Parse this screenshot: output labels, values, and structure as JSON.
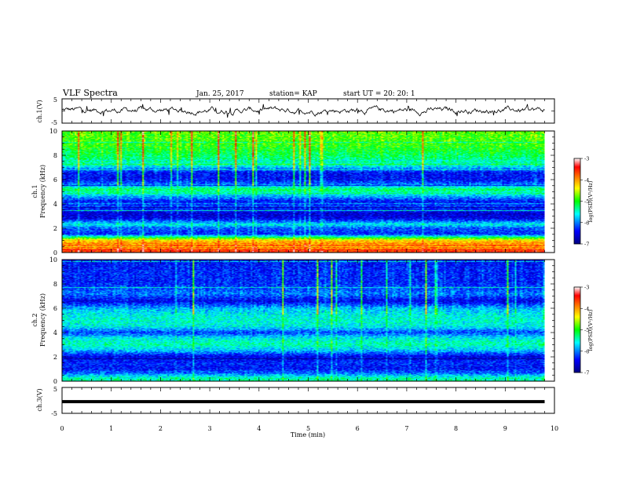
{
  "header": {
    "title": "VLF Spectra",
    "date": "Jan. 25, 2017",
    "station": "station= KAP",
    "start": "start  UT =   20: 20: 1"
  },
  "panels": {
    "ch1_wave": {
      "ylabel": "ch.1(V)",
      "ymin_label": "-5",
      "ymax_label": "5"
    },
    "spec1": {
      "ylabel_line1": "ch.1",
      "ylabel_line2": "Frequency (kHz)"
    },
    "spec2": {
      "ylabel_line1": "ch.2",
      "ylabel_line2": "Frequency (kHz)"
    },
    "ch3_wave": {
      "ylabel": "ch.3(V)",
      "ymin_label": "-5",
      "ymax_label": "5"
    },
    "xlabel": "Time  (min)"
  },
  "colorbar": {
    "label": "log(PSD)(V²/Hz)",
    "ticks": [
      "-3",
      "-4",
      "-5",
      "-6",
      "-7"
    ],
    "colors": [
      "#ffffff",
      "#ff0000",
      "#ffff00",
      "#00ff00",
      "#00ffff",
      "#0000ff",
      "#000080"
    ]
  },
  "chart_data": [
    {
      "type": "line",
      "name": "ch1-waveform",
      "ylabel": "ch.1(V)",
      "xlim": [
        0,
        9.8
      ],
      "ylim": [
        -5,
        5
      ],
      "yticks": [
        -5,
        5
      ],
      "description_values": {
        "mean_v": 0.3,
        "noise_amplitude_v": 1.8
      }
    },
    {
      "type": "heatmap",
      "name": "ch1-spectrogram",
      "ylabel": "Frequency (kHz)",
      "xlim": [
        0,
        9.8
      ],
      "ylim": [
        0,
        10
      ],
      "yticks": [
        0,
        2,
        4,
        6,
        8,
        10
      ],
      "zlim": [
        -7,
        -3
      ],
      "freq_profile_khz_logpsd": [
        [
          0.2,
          -3.6
        ],
        [
          0.6,
          -3.8
        ],
        [
          1.0,
          -4.3
        ],
        [
          1.5,
          -6.3
        ],
        [
          2.0,
          -6.1
        ],
        [
          2.3,
          -5.6
        ],
        [
          2.8,
          -6.5
        ],
        [
          3.2,
          -6.6
        ],
        [
          3.8,
          -6.2
        ],
        [
          4.2,
          -6.4
        ],
        [
          4.8,
          -5.6
        ],
        [
          5.2,
          -5.2
        ],
        [
          5.6,
          -6.0
        ],
        [
          6.0,
          -6.4
        ],
        [
          6.6,
          -6.4
        ],
        [
          7.2,
          -5.5
        ],
        [
          8.0,
          -5.2
        ],
        [
          9.0,
          -4.9
        ],
        [
          10.0,
          -4.8
        ]
      ]
    },
    {
      "type": "heatmap",
      "name": "ch2-spectrogram",
      "ylabel": "Frequency (kHz)",
      "xlim": [
        0,
        9.8
      ],
      "ylim": [
        0,
        10
      ],
      "yticks": [
        0,
        2,
        4,
        6,
        8,
        10
      ],
      "zlim": [
        -7,
        -3
      ],
      "freq_profile_khz_logpsd": [
        [
          0.2,
          -5.4
        ],
        [
          0.6,
          -6.0
        ],
        [
          1.0,
          -6.4
        ],
        [
          1.5,
          -6.3
        ],
        [
          2.0,
          -6.5
        ],
        [
          2.5,
          -5.8
        ],
        [
          3.0,
          -5.4
        ],
        [
          3.5,
          -5.6
        ],
        [
          4.0,
          -6.2
        ],
        [
          4.5,
          -5.6
        ],
        [
          5.0,
          -5.5
        ],
        [
          5.5,
          -5.6
        ],
        [
          6.0,
          -5.8
        ],
        [
          6.6,
          -6.5
        ],
        [
          7.2,
          -6.0
        ],
        [
          8.0,
          -6.3
        ],
        [
          9.0,
          -6.3
        ],
        [
          10.0,
          -6.4
        ]
      ]
    },
    {
      "type": "line",
      "name": "ch3-waveform",
      "ylabel": "ch.3(V)",
      "xlabel": "Time  (min)",
      "xlim": [
        0,
        10
      ],
      "ylim": [
        -5,
        5
      ],
      "yticks": [
        -5,
        5
      ],
      "xticks": [
        0,
        1,
        2,
        3,
        4,
        5,
        6,
        7,
        8,
        9,
        10
      ],
      "constant_value_v": -0.5
    }
  ]
}
